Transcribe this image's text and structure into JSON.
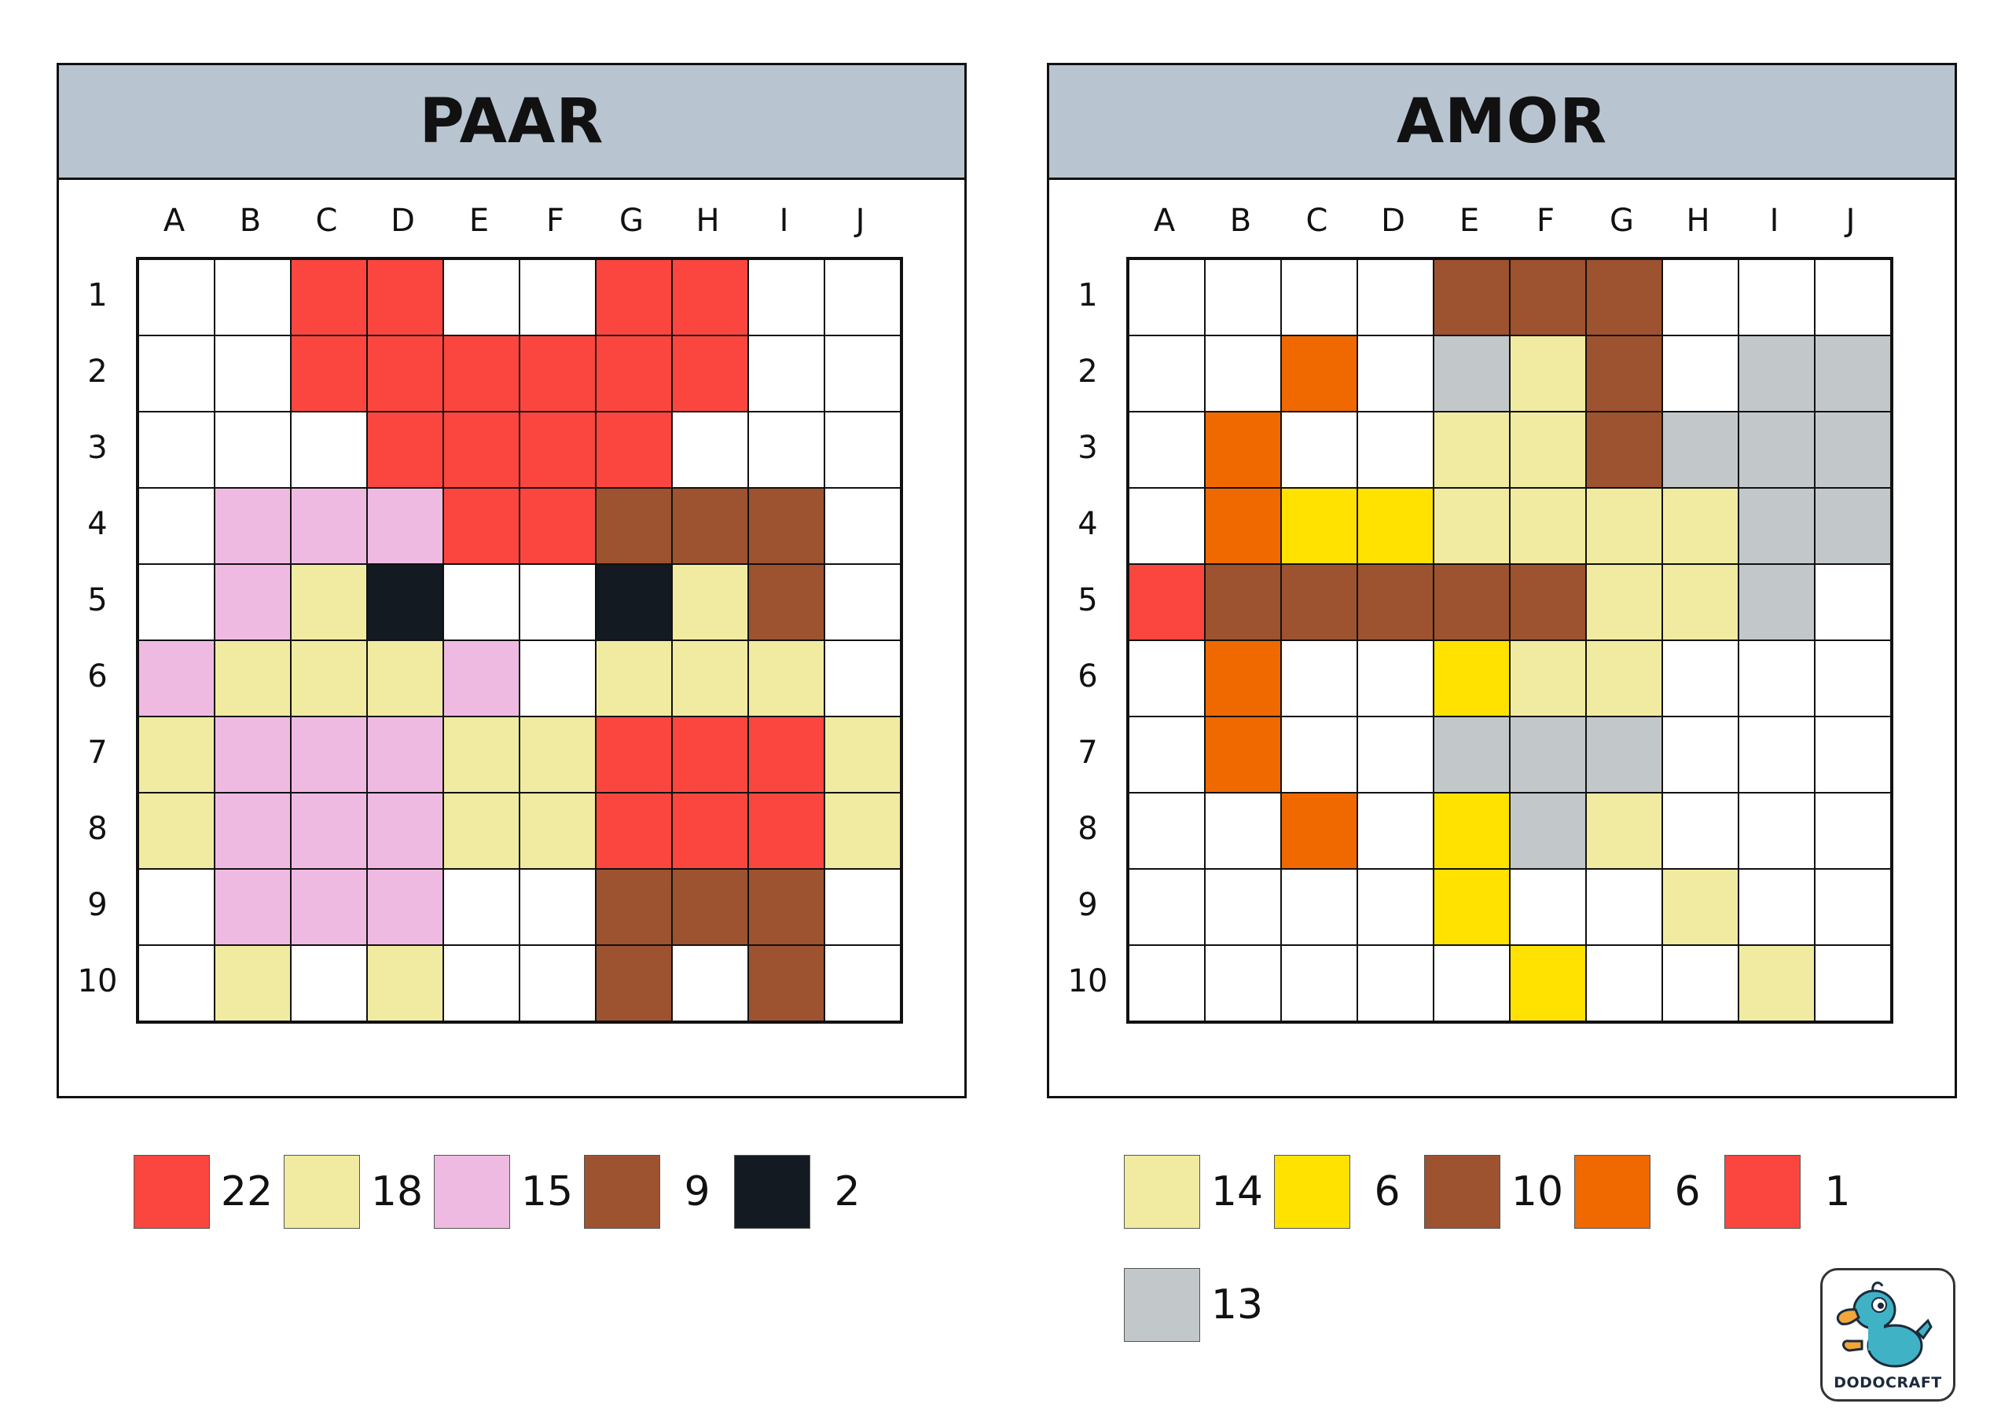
{
  "columns": [
    "A",
    "B",
    "C",
    "D",
    "E",
    "F",
    "G",
    "H",
    "I",
    "J"
  ],
  "rows": [
    "1",
    "2",
    "3",
    "4",
    "5",
    "6",
    "7",
    "8",
    "9",
    "10"
  ],
  "colors": {
    "W": "#ffffff",
    "R": "#fb4640",
    "Y": "#f0eba0",
    "P": "#efbae2",
    "N": "#9d5230",
    "K": "#141a21",
    "G": "#ffe200",
    "O": "#ef6900",
    "S": "#c2c7ca"
  },
  "panels": [
    {
      "title": "PAAR",
      "grid": [
        [
          "W",
          "W",
          "R",
          "R",
          "W",
          "W",
          "R",
          "R",
          "W",
          "W"
        ],
        [
          "W",
          "W",
          "R",
          "R",
          "R",
          "R",
          "R",
          "R",
          "W",
          "W"
        ],
        [
          "W",
          "W",
          "W",
          "R",
          "R",
          "R",
          "R",
          "W",
          "W",
          "W"
        ],
        [
          "W",
          "P",
          "P",
          "P",
          "R",
          "R",
          "N",
          "N",
          "N",
          "W"
        ],
        [
          "W",
          "P",
          "Y",
          "K",
          "W",
          "W",
          "K",
          "Y",
          "N",
          "W"
        ],
        [
          "P",
          "Y",
          "Y",
          "Y",
          "P",
          "W",
          "Y",
          "Y",
          "Y",
          "W"
        ],
        [
          "Y",
          "P",
          "P",
          "P",
          "Y",
          "Y",
          "R",
          "R",
          "R",
          "Y"
        ],
        [
          "Y",
          "P",
          "P",
          "P",
          "Y",
          "Y",
          "R",
          "R",
          "R",
          "Y"
        ],
        [
          "W",
          "P",
          "P",
          "P",
          "W",
          "W",
          "N",
          "N",
          "N",
          "W"
        ],
        [
          "W",
          "Y",
          "W",
          "Y",
          "W",
          "W",
          "N",
          "W",
          "N",
          "W"
        ]
      ],
      "legend": [
        {
          "color": "R",
          "count": "22"
        },
        {
          "color": "Y",
          "count": "18"
        },
        {
          "color": "P",
          "count": "15"
        },
        {
          "color": "N",
          "count": "9"
        },
        {
          "color": "K",
          "count": "2"
        }
      ]
    },
    {
      "title": "AMOR",
      "grid": [
        [
          "W",
          "W",
          "W",
          "W",
          "N",
          "N",
          "N",
          "W",
          "W",
          "W"
        ],
        [
          "W",
          "W",
          "O",
          "W",
          "S",
          "Y",
          "N",
          "W",
          "S",
          "S"
        ],
        [
          "W",
          "O",
          "W",
          "W",
          "Y",
          "Y",
          "N",
          "S",
          "S",
          "S"
        ],
        [
          "W",
          "O",
          "G",
          "G",
          "Y",
          "Y",
          "Y",
          "Y",
          "S",
          "S"
        ],
        [
          "R",
          "N",
          "N",
          "N",
          "N",
          "N",
          "Y",
          "Y",
          "S",
          "W"
        ],
        [
          "W",
          "O",
          "W",
          "W",
          "G",
          "Y",
          "Y",
          "W",
          "W",
          "W"
        ],
        [
          "W",
          "O",
          "W",
          "W",
          "S",
          "S",
          "S",
          "W",
          "W",
          "W"
        ],
        [
          "W",
          "W",
          "O",
          "W",
          "G",
          "S",
          "Y",
          "W",
          "W",
          "W"
        ],
        [
          "W",
          "W",
          "W",
          "W",
          "G",
          "W",
          "W",
          "Y",
          "W",
          "W"
        ],
        [
          "W",
          "W",
          "W",
          "W",
          "W",
          "G",
          "W",
          "W",
          "Y",
          "W"
        ]
      ],
      "legend": [
        {
          "color": "Y",
          "count": "14"
        },
        {
          "color": "G",
          "count": "6"
        },
        {
          "color": "N",
          "count": "10"
        },
        {
          "color": "O",
          "count": "6"
        },
        {
          "color": "R",
          "count": "1"
        }
      ],
      "legend2": [
        {
          "color": "S",
          "count": "13"
        }
      ]
    }
  ],
  "logo": {
    "text": "DODOCRAFT",
    "icon": "dodo-bird-icon"
  }
}
